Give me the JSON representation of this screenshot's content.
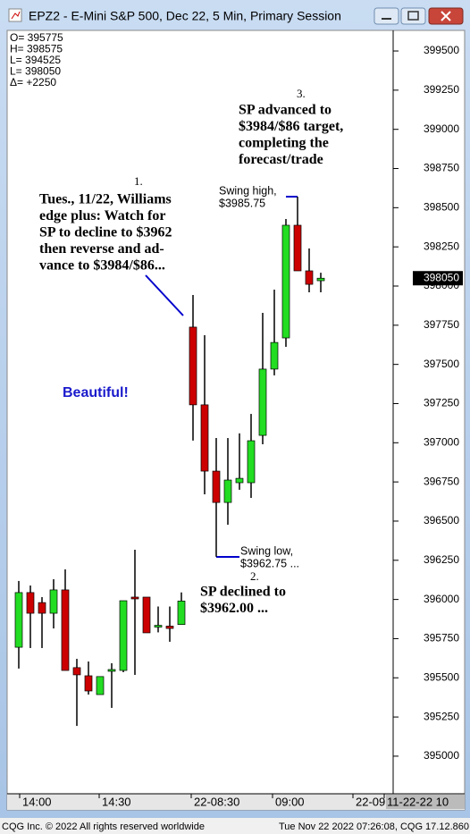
{
  "window_title": "EPZ2 - E-Mini S&P 500, Dec 22, 5 Min, Primary Session",
  "footer": {
    "left": "CQG Inc. © 2022 All rights reserved worldwide",
    "right": "Tue Nov 22 2022 07:26:08, CQG 17.12.860"
  },
  "chart_data": {
    "type": "candlestick",
    "info_lines": [
      "O= 395775",
      "H= 398575",
      "L= 394525",
      "L= 398050",
      "Δ=   +2250"
    ],
    "ylim": [
      394760,
      399620
    ],
    "yticks": [
      395000,
      395250,
      395500,
      395750,
      396000,
      396250,
      396500,
      396750,
      397000,
      397250,
      397500,
      397750,
      398000,
      398250,
      398500,
      398750,
      399000,
      399250,
      399500
    ],
    "last_price": 398050,
    "x_labels": [
      "14:00",
      "14:30",
      "22-08:30",
      "09:00",
      "22-09:30",
      "11-22-22 10"
    ],
    "up_color": "#22dd22",
    "down_color": "#cc0000",
    "open": [
      395695,
      396044,
      395980,
      395912,
      396061,
      395565,
      395513,
      395393,
      395547,
      395547,
      396015,
      396015,
      395830,
      395830,
      395840,
      397738,
      397242,
      396819,
      396619,
      396745,
      396745,
      397047,
      397470,
      397669,
      398388,
      398097,
      398034
    ],
    "high": [
      396118,
      396089,
      396015,
      396129,
      396192,
      395621,
      395604,
      395508,
      395593,
      395992,
      396317,
      396015,
      395955,
      395955,
      396045,
      397943,
      397686,
      397030,
      397030,
      397060,
      397184,
      397829,
      397977,
      398428,
      398570,
      398240,
      398085
    ],
    "low": [
      395559,
      395690,
      395690,
      395815,
      395547,
      395193,
      395393,
      395393,
      395308,
      395536,
      395519,
      395787,
      395790,
      395730,
      395840,
      397014,
      396671,
      396272,
      396477,
      396700,
      396648,
      396990,
      397430,
      397612,
      398097,
      397960,
      397960
    ],
    "close": [
      396044,
      395912,
      395912,
      396061,
      395547,
      395519,
      395416,
      395508,
      395553,
      395992,
      396010,
      395787,
      395835,
      395815,
      395990,
      397242,
      396819,
      396619,
      396762,
      396773,
      397013,
      397470,
      397640,
      398388,
      398097,
      398011,
      398050
    ],
    "annotations": [
      {
        "number": "1.",
        "lines": [
          "Tues., 11/22, Williams",
          "edge plus: Watch for",
          "SP to decline to $3962",
          "then reverse and ad-",
          "vance to $3984/$86..."
        ]
      },
      {
        "number": "2.",
        "lines": [
          "SP declined to",
          "$3962.00 ..."
        ]
      },
      {
        "number": "3.",
        "lines": [
          "SP advanced to",
          "$3984/$86 target,",
          "completing the",
          "forecast/trade"
        ]
      }
    ],
    "swing_high": [
      "Swing high,",
      "$3985.75"
    ],
    "swing_low": [
      "Swing low,",
      "$3962.75 ..."
    ],
    "remark": "Beautiful!"
  }
}
